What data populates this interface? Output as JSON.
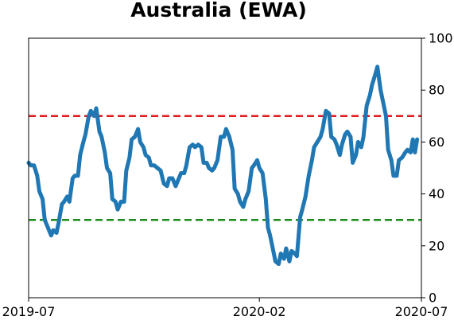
{
  "chart_data": {
    "type": "line",
    "title": "Australia (EWA)",
    "xlabel": "",
    "ylabel": "",
    "x_range": [
      "2019-07-01",
      "2020-07-01"
    ],
    "x_ticks": [
      {
        "label": "2019-07",
        "date": "2019-07-01"
      },
      {
        "label": "2020-02",
        "date": "2020-02-01"
      },
      {
        "label": "2020-07",
        "date": "2020-07-01"
      }
    ],
    "ylim": [
      0,
      100
    ],
    "y_ticks": [
      0,
      20,
      40,
      60,
      80,
      100
    ],
    "y_axis_side": "right",
    "grid": false,
    "legend": "none",
    "reference_lines": [
      {
        "value": 70,
        "color": "#e31a1c",
        "style": "dashed"
      },
      {
        "value": 30,
        "color": "#1a8a1a",
        "style": "dashed"
      }
    ],
    "series": [
      {
        "color": "#1f77b4",
        "points": [
          [
            "2019-07-01",
            52
          ],
          [
            "2019-07-03",
            51
          ],
          [
            "2019-07-06",
            51
          ],
          [
            "2019-07-09",
            47
          ],
          [
            "2019-07-11",
            41
          ],
          [
            "2019-07-14",
            38
          ],
          [
            "2019-07-16",
            30
          ],
          [
            "2019-07-19",
            27
          ],
          [
            "2019-07-22",
            24
          ],
          [
            "2019-07-24",
            26
          ],
          [
            "2019-07-27",
            25
          ],
          [
            "2019-07-29",
            29
          ],
          [
            "2019-08-01",
            36
          ],
          [
            "2019-08-03",
            37
          ],
          [
            "2019-08-06",
            39
          ],
          [
            "2019-08-08",
            37
          ],
          [
            "2019-08-11",
            46
          ],
          [
            "2019-08-13",
            47
          ],
          [
            "2019-08-16",
            47
          ],
          [
            "2019-08-18",
            55
          ],
          [
            "2019-08-21",
            60
          ],
          [
            "2019-08-23",
            63
          ],
          [
            "2019-08-26",
            70
          ],
          [
            "2019-08-28",
            72
          ],
          [
            "2019-08-31",
            70
          ],
          [
            "2019-09-02",
            73
          ],
          [
            "2019-09-05",
            64
          ],
          [
            "2019-09-07",
            62
          ],
          [
            "2019-09-10",
            56
          ],
          [
            "2019-09-12",
            50
          ],
          [
            "2019-09-15",
            48
          ],
          [
            "2019-09-17",
            38
          ],
          [
            "2019-09-20",
            37
          ],
          [
            "2019-09-22",
            34
          ],
          [
            "2019-09-25",
            37
          ],
          [
            "2019-09-28",
            37
          ],
          [
            "2019-09-30",
            49
          ],
          [
            "2019-10-03",
            54
          ],
          [
            "2019-10-05",
            61
          ],
          [
            "2019-10-08",
            62
          ],
          [
            "2019-10-11",
            65
          ],
          [
            "2019-10-13",
            60
          ],
          [
            "2019-10-16",
            58
          ],
          [
            "2019-10-18",
            55
          ],
          [
            "2019-10-21",
            54
          ],
          [
            "2019-10-23",
            51
          ],
          [
            "2019-10-26",
            51
          ],
          [
            "2019-10-29",
            50
          ],
          [
            "2019-11-01",
            49
          ],
          [
            "2019-11-04",
            44
          ],
          [
            "2019-11-07",
            43
          ],
          [
            "2019-11-09",
            46
          ],
          [
            "2019-11-12",
            46
          ],
          [
            "2019-11-15",
            43
          ],
          [
            "2019-11-18",
            46
          ],
          [
            "2019-11-20",
            48
          ],
          [
            "2019-11-23",
            48
          ],
          [
            "2019-11-25",
            51
          ],
          [
            "2019-11-28",
            58
          ],
          [
            "2019-12-01",
            59
          ],
          [
            "2019-12-03",
            58
          ],
          [
            "2019-12-06",
            59
          ],
          [
            "2019-12-09",
            58
          ],
          [
            "2019-12-11",
            52
          ],
          [
            "2019-12-14",
            52
          ],
          [
            "2019-12-16",
            50
          ],
          [
            "2019-12-19",
            49
          ],
          [
            "2019-12-21",
            50
          ],
          [
            "2019-12-24",
            53
          ],
          [
            "2019-12-27",
            62
          ],
          [
            "2019-12-30",
            62
          ],
          [
            "2020-01-01",
            65
          ],
          [
            "2020-01-04",
            62
          ],
          [
            "2020-01-07",
            57
          ],
          [
            "2020-01-09",
            42
          ],
          [
            "2020-01-12",
            40
          ],
          [
            "2020-01-14",
            37
          ],
          [
            "2020-01-17",
            35
          ],
          [
            "2020-01-19",
            38
          ],
          [
            "2020-01-22",
            41
          ],
          [
            "2020-01-25",
            50
          ],
          [
            "2020-01-27",
            51
          ],
          [
            "2020-01-30",
            53
          ],
          [
            "2020-02-01",
            50
          ],
          [
            "2020-02-04",
            48
          ],
          [
            "2020-02-07",
            38
          ],
          [
            "2020-02-09",
            27
          ],
          [
            "2020-02-11",
            24
          ],
          [
            "2020-02-14",
            18
          ],
          [
            "2020-02-16",
            14
          ],
          [
            "2020-02-19",
            13
          ],
          [
            "2020-02-21",
            17
          ],
          [
            "2020-02-24",
            15
          ],
          [
            "2020-02-26",
            19
          ],
          [
            "2020-02-29",
            14
          ],
          [
            "2020-03-02",
            18
          ],
          [
            "2020-03-05",
            17
          ],
          [
            "2020-03-07",
            16
          ],
          [
            "2020-03-10",
            31
          ],
          [
            "2020-03-12",
            34
          ],
          [
            "2020-03-15",
            39
          ],
          [
            "2020-03-18",
            47
          ],
          [
            "2020-03-21",
            53
          ],
          [
            "2020-03-23",
            58
          ],
          [
            "2020-03-26",
            60
          ],
          [
            "2020-03-29",
            62
          ],
          [
            "2020-03-31",
            65
          ],
          [
            "2020-04-03",
            72
          ],
          [
            "2020-04-06",
            71
          ],
          [
            "2020-04-08",
            62
          ],
          [
            "2020-04-11",
            61
          ],
          [
            "2020-04-13",
            59
          ],
          [
            "2020-04-16",
            55
          ],
          [
            "2020-04-18",
            59
          ],
          [
            "2020-04-21",
            63
          ],
          [
            "2020-04-23",
            64
          ],
          [
            "2020-04-26",
            62
          ],
          [
            "2020-04-28",
            52
          ],
          [
            "2020-05-01",
            55
          ],
          [
            "2020-05-03",
            60
          ],
          [
            "2020-05-06",
            58
          ],
          [
            "2020-05-08",
            62
          ],
          [
            "2020-05-11",
            74
          ],
          [
            "2020-05-14",
            78
          ],
          [
            "2020-05-16",
            82
          ],
          [
            "2020-05-19",
            86
          ],
          [
            "2020-05-21",
            89
          ],
          [
            "2020-05-24",
            80
          ],
          [
            "2020-05-26",
            76
          ],
          [
            "2020-05-29",
            70
          ],
          [
            "2020-05-31",
            57
          ],
          [
            "2020-06-03",
            53
          ],
          [
            "2020-06-05",
            47
          ],
          [
            "2020-06-08",
            47
          ],
          [
            "2020-06-10",
            53
          ],
          [
            "2020-06-13",
            54
          ],
          [
            "2020-06-16",
            56
          ],
          [
            "2020-06-18",
            57
          ],
          [
            "2020-06-21",
            56
          ],
          [
            "2020-06-23",
            61
          ],
          [
            "2020-06-25",
            56
          ],
          [
            "2020-06-27",
            61
          ]
        ]
      }
    ]
  }
}
